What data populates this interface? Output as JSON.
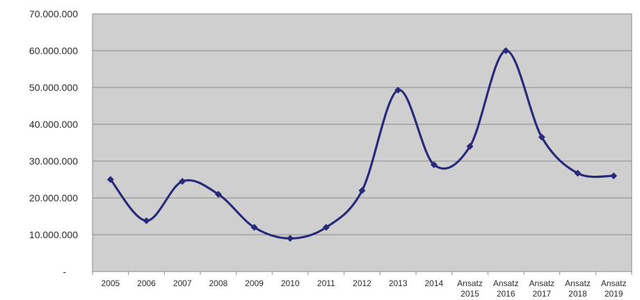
{
  "chart_data": {
    "type": "line",
    "smoothed": true,
    "categories": [
      [
        "2005"
      ],
      [
        "2006"
      ],
      [
        "2007"
      ],
      [
        "2008"
      ],
      [
        "2009"
      ],
      [
        "2010"
      ],
      [
        "2011"
      ],
      [
        "2012"
      ],
      [
        "2013"
      ],
      [
        "2014"
      ],
      [
        "Ansatz",
        "2015"
      ],
      [
        "Ansatz",
        "2016"
      ],
      [
        "Ansatz",
        "2017"
      ],
      [
        "Ansatz",
        "2018"
      ],
      [
        "Ansatz",
        "2019"
      ]
    ],
    "series": [
      {
        "values": [
          25000000,
          13800000,
          24500000,
          21000000,
          12000000,
          9000000,
          12000000,
          22000000,
          49300000,
          29000000,
          34000000,
          60000000,
          36500000,
          26700000,
          26000000
        ],
        "color": "#2b2a7a",
        "marker": "diamond"
      }
    ],
    "ylim": [
      0,
      70000000
    ],
    "yticks": [
      "-",
      "10.000.000",
      "20.000.000",
      "30.000.000",
      "40.000.000",
      "50.000.000",
      "60.000.000",
      "70.000.000"
    ],
    "grid": true,
    "legend": "none",
    "colors": {
      "plot_background": "#cfcfcf",
      "gridline": "#8a8a8a",
      "line": "#2b2a7a"
    }
  }
}
